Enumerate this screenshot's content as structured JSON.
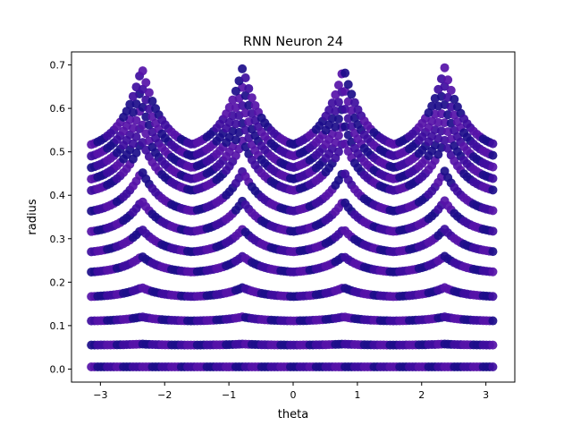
{
  "chart_data": {
    "type": "scatter",
    "title": "RNN Neuron 24",
    "xlabel": "theta",
    "ylabel": "radius",
    "xlim": [
      -3.45,
      3.45
    ],
    "ylim": [
      -0.03,
      0.73
    ],
    "xticks": [
      -3,
      -2,
      -1,
      0,
      1,
      2,
      3
    ],
    "yticks": [
      0.0,
      0.1,
      0.2,
      0.3,
      0.4,
      0.5,
      0.6,
      0.7
    ],
    "ytick_labels": [
      "0.0",
      "0.1",
      "0.2",
      "0.3",
      "0.4",
      "0.5",
      "0.6",
      "0.7"
    ],
    "grid": false,
    "theta_range": [
      -3.14159,
      3.14159
    ],
    "base_radii": [
      0.005,
      0.055,
      0.11,
      0.165,
      0.22,
      0.265,
      0.31,
      0.355,
      0.4,
      0.425,
      0.45,
      0.475,
      0.5
    ],
    "peak_theta": [
      -2.356,
      -0.785,
      0.785,
      2.356
    ],
    "peak_radius": 0.695,
    "colors": {
      "marker_dark": "#1c0d8a",
      "marker_mid": "#3e0d9e",
      "marker_light": "#5612a8",
      "axis": "#000000",
      "background": "#ffffff"
    }
  }
}
